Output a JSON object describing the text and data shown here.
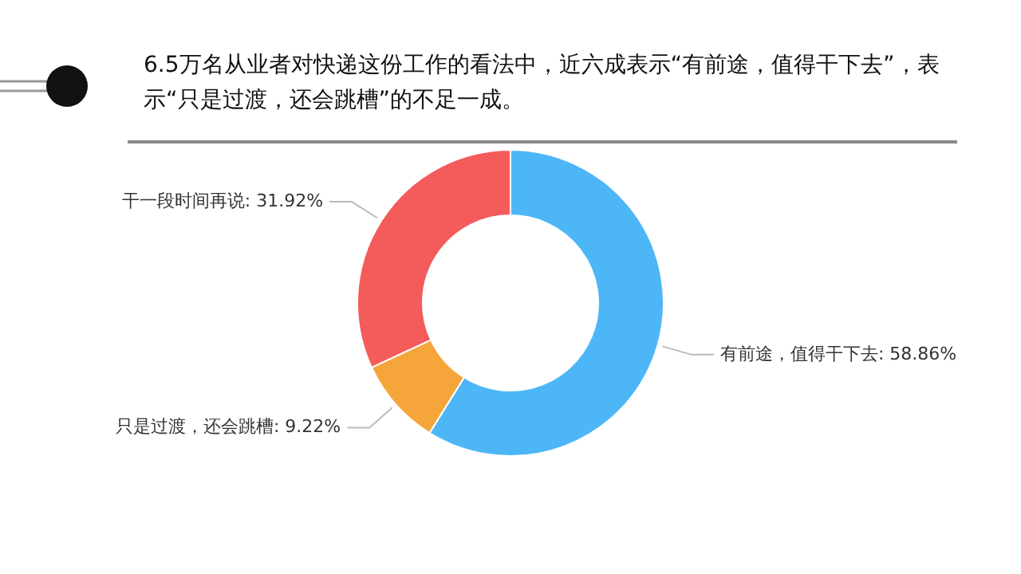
{
  "chart_data": {
    "type": "donut",
    "title": "6.5万名从业者对快递这份工作的看法中，近六成表示“有前途，值得干下去”，表示“只是过渡，还会跳槽”的不足一成。",
    "categories": [
      "有前途，值得干下去",
      "只是过渡，还会跳槽",
      "干一段时间再说"
    ],
    "values": [
      58.86,
      9.22,
      31.92
    ],
    "value_labels": [
      "58.86%",
      "9.22%",
      "31.92%"
    ],
    "colors": [
      "#4db6f7",
      "#f5a53a",
      "#f45b5b"
    ]
  }
}
